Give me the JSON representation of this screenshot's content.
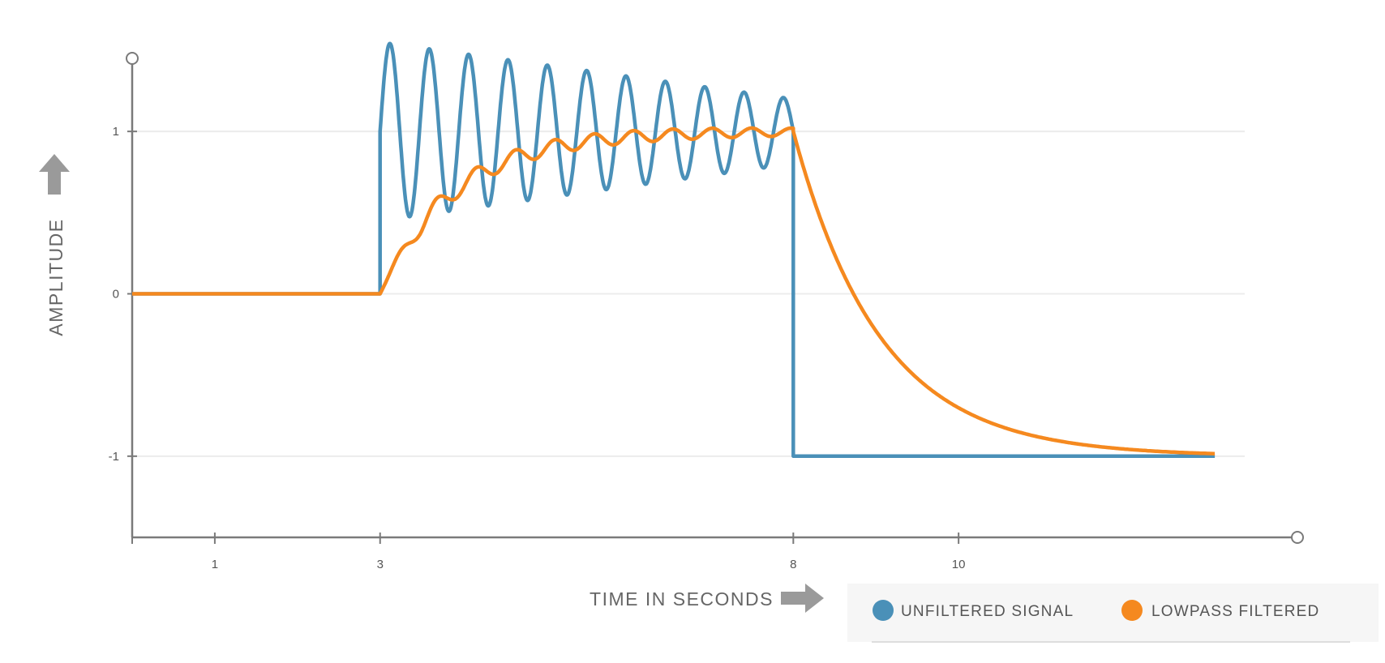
{
  "chart_data": {
    "type": "line",
    "xlabel": "TIME IN SECONDS",
    "ylabel": "AMPLITUDE",
    "x_ticks": [
      1,
      3,
      8,
      10
    ],
    "y_ticks": [
      -1,
      0,
      1
    ],
    "xlim": [
      0,
      14.1
    ],
    "ylim": [
      -1.5,
      1.45
    ],
    "grid": true,
    "legend_placement": "bottom-right",
    "series": [
      {
        "name": "UNFILTERED SIGNAL",
        "color": "#4a90b8",
        "description_values": {
          "zero_until": 3,
          "oscillation_start": 3,
          "oscillation_end": 8,
          "oscillation_center": 1,
          "oscillation_initial_amplitude": 0.55,
          "oscillation_final_amplitude": 0.2,
          "oscillation_cycles": 10.5,
          "value_after": -1,
          "end_x": 13.1
        }
      },
      {
        "name": "LOWPASS FILTERED",
        "color": "#f5891f",
        "description_values": {
          "zero_until": 3,
          "rise_target": 1,
          "value_at_8": 1,
          "decay_target": -1,
          "end_x": 13.1
        }
      }
    ]
  }
}
